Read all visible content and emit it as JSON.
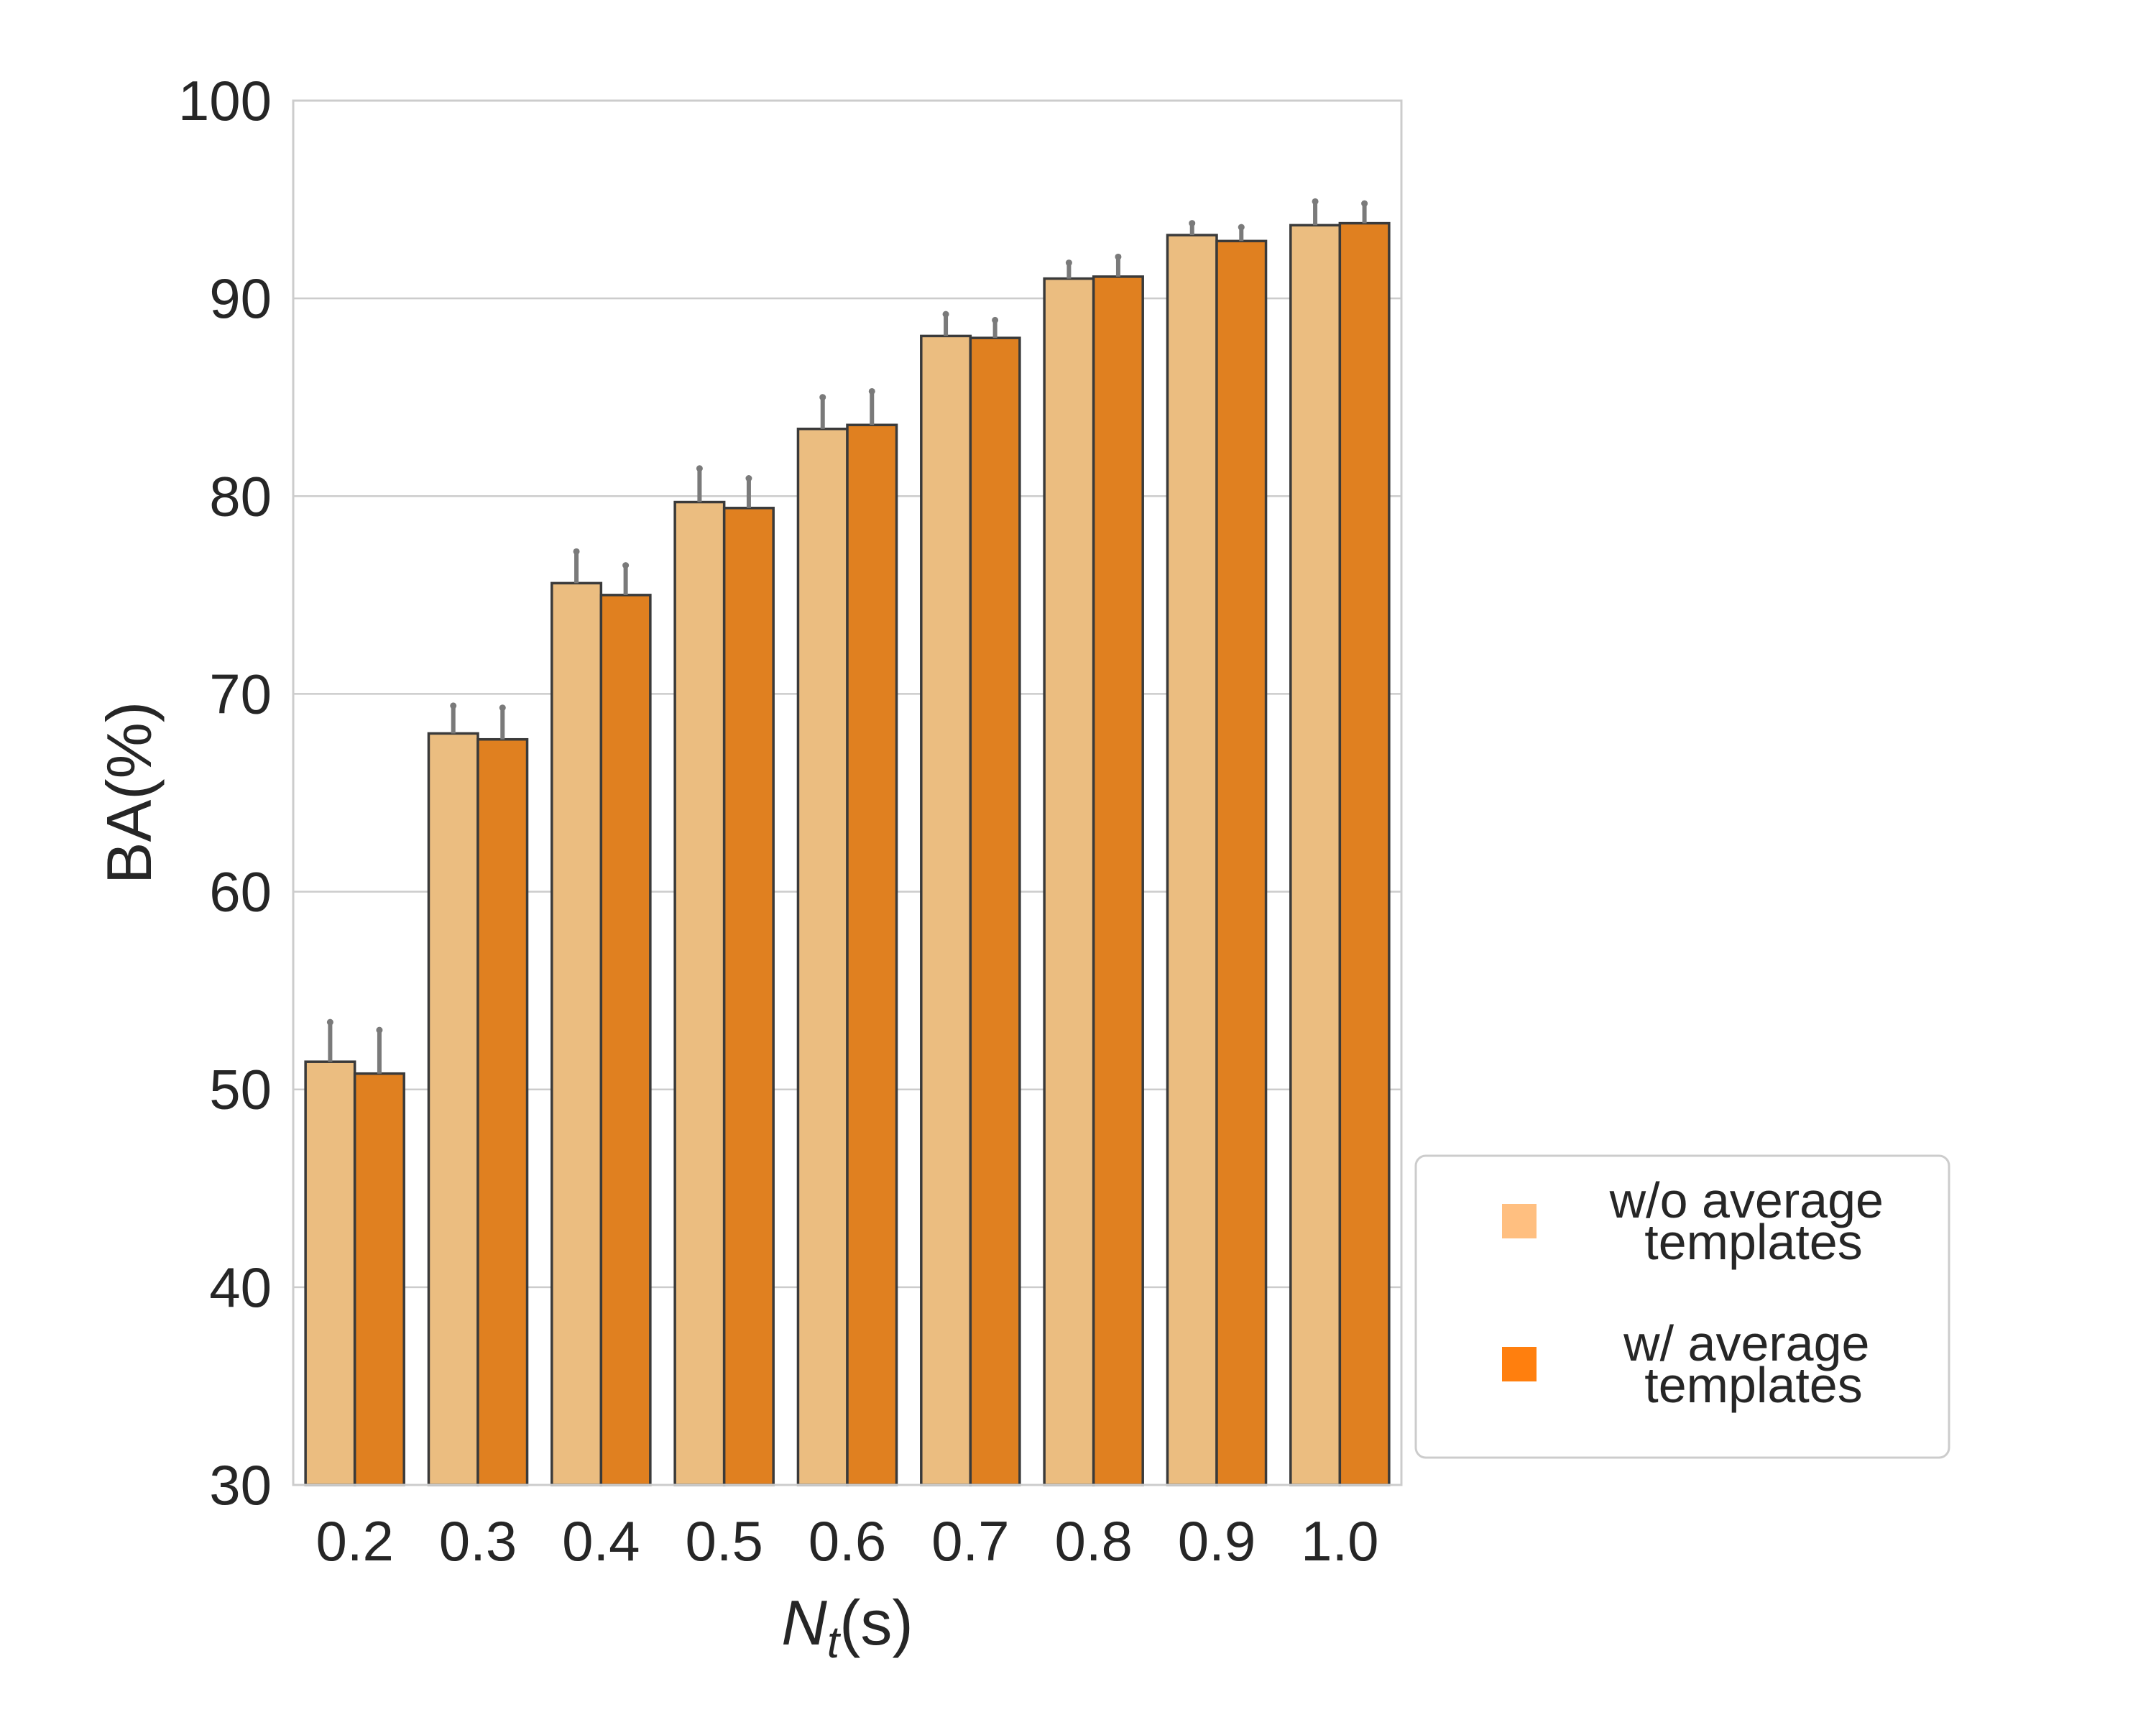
{
  "chart_data": {
    "type": "bar",
    "categories": [
      "0.2",
      "0.3",
      "0.4",
      "0.5",
      "0.6",
      "0.7",
      "0.8",
      "0.9",
      "1.0"
    ],
    "series": [
      {
        "name": "w/o average templates",
        "legend_lines": [
          "w/o average",
          "templates"
        ],
        "color": "#ebbd80",
        "values": [
          51.4,
          68.0,
          75.6,
          79.7,
          83.4,
          88.1,
          91.0,
          93.2,
          93.7
        ],
        "error_upper": [
          53.4,
          69.4,
          77.2,
          81.4,
          85.0,
          89.2,
          91.8,
          93.8,
          94.9
        ]
      },
      {
        "name": "w/ average templates",
        "legend_lines": [
          "w/ average",
          "templates"
        ],
        "color": "#e08020",
        "values": [
          50.8,
          67.7,
          75.0,
          79.4,
          83.6,
          88.0,
          91.1,
          92.9,
          93.8
        ],
        "error_upper": [
          53.0,
          69.3,
          76.5,
          80.9,
          85.3,
          88.9,
          92.1,
          93.6,
          94.8
        ]
      }
    ],
    "legend_markers": [
      "#ffbf80",
      "#ff7f0e"
    ],
    "xlabel_main": "N",
    "xlabel_sub": "t",
    "xlabel_unit": "(s)",
    "ylabel": "BA(%)",
    "ylim": [
      30,
      100
    ],
    "yticks": [
      30,
      40,
      50,
      60,
      70,
      80,
      90,
      100
    ],
    "grid": true,
    "legend_position": "lower-right, outside plot"
  }
}
